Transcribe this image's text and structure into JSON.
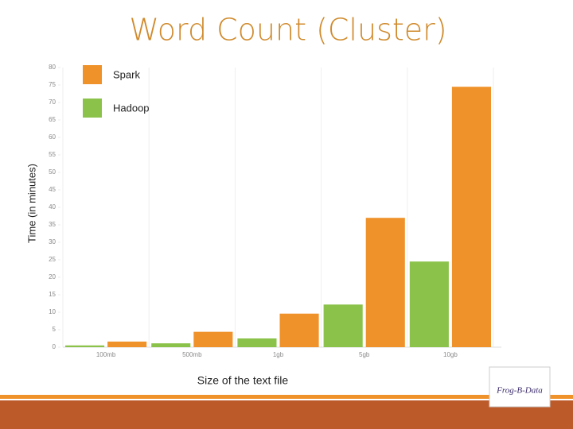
{
  "chart_data": {
    "type": "bar",
    "title": "Word Count (Cluster)",
    "x_label": "Size of the text file",
    "y_label": "Time (in minutes)",
    "categories": [
      "100mb",
      "500mb",
      "1gb",
      "5gb",
      "10gb"
    ],
    "series": [
      {
        "name": "Spark",
        "color": "#f0922a",
        "values": [
          1.6,
          4.4,
          9.6,
          37,
          74.5
        ]
      },
      {
        "name": "Hadoop",
        "color": "#8bc34a",
        "values": [
          0.5,
          1.1,
          2.5,
          12.2,
          24.5
        ]
      }
    ],
    "ylim": [
      0,
      80
    ],
    "yticks": [
      0,
      5,
      10,
      15,
      20,
      25,
      30,
      35,
      40,
      45,
      50,
      55,
      60,
      65,
      70,
      75,
      80
    ],
    "grid": true,
    "legend": "top-left"
  },
  "logo": "Frog-B-Data"
}
